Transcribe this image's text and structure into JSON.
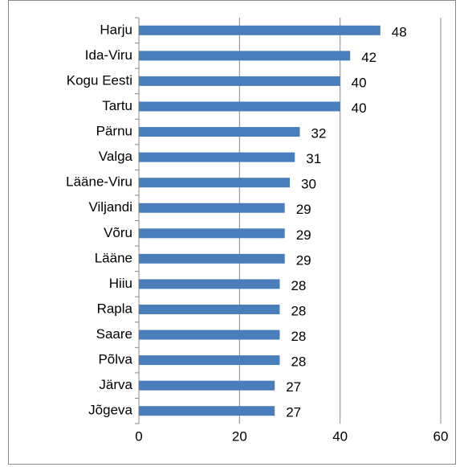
{
  "chart_data": {
    "type": "barh",
    "categories": [
      "Harju",
      "Ida-Viru",
      "Kogu Eesti",
      "Tartu",
      "Pärnu",
      "Valga",
      "Lääne-Viru",
      "Viljandi",
      "Võru",
      "Lääne",
      "Hiiu",
      "Rapla",
      "Saare",
      "Põlva",
      "Järva",
      "Jõgeva"
    ],
    "values": [
      48,
      42,
      40,
      40,
      32,
      31,
      30,
      29,
      29,
      29,
      28,
      28,
      28,
      28,
      27,
      27
    ],
    "color": "#4a7ebb",
    "xlim": [
      0,
      60
    ],
    "xticks": [
      0,
      20,
      40,
      60
    ],
    "grid": true
  }
}
